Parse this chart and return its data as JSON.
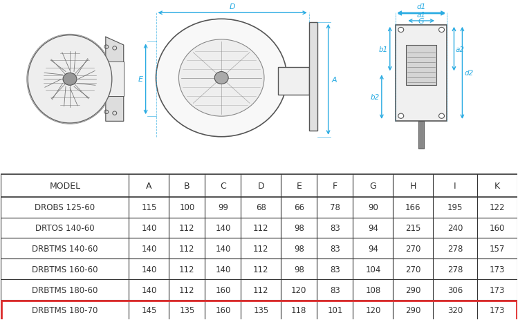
{
  "title": "",
  "table_headers": [
    "MODEL",
    "A",
    "B",
    "C",
    "D",
    "E",
    "F",
    "G",
    "H",
    "I",
    "K"
  ],
  "table_data": [
    [
      "DROBS 125-60",
      "115",
      "100",
      "99",
      "68",
      "66",
      "78",
      "90",
      "166",
      "195",
      "122"
    ],
    [
      "DRTOS 140-60",
      "140",
      "112",
      "140",
      "112",
      "98",
      "83",
      "94",
      "215",
      "240",
      "160"
    ],
    [
      "DRBTMS 140-60",
      "140",
      "112",
      "140",
      "112",
      "98",
      "83",
      "94",
      "270",
      "278",
      "157"
    ],
    [
      "DRBTMS 160-60",
      "140",
      "112",
      "140",
      "112",
      "98",
      "83",
      "104",
      "270",
      "278",
      "173"
    ],
    [
      "DRBTMS 180-60",
      "140",
      "112",
      "160",
      "112",
      "120",
      "83",
      "108",
      "290",
      "306",
      "173"
    ],
    [
      "DRBTMS 180-70",
      "145",
      "135",
      "160",
      "135",
      "118",
      "101",
      "120",
      "290",
      "320",
      "173"
    ]
  ],
  "highlight_last_row": true,
  "highlight_color": "#ffffff",
  "highlight_border_color": "#e03030",
  "dim_color": "#29abe2",
  "background_color": "#ffffff",
  "line_color": "#333333",
  "text_color": "#333333",
  "header_fontsize": 9,
  "table_fontsize": 8.5
}
